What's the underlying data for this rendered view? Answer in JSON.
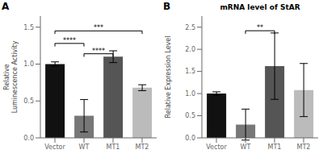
{
  "chart_data": [
    {
      "type": "bar",
      "panel_label": "A",
      "ylabel": "Relative\nLuminescence Activity",
      "categories": [
        "Vector",
        "WT",
        "MT1",
        "MT2"
      ],
      "values": [
        1.0,
        0.3,
        1.1,
        0.68
      ],
      "errors": [
        0.03,
        0.22,
        0.08,
        0.04
      ],
      "colors": [
        "#111111",
        "#777777",
        "#555555",
        "#bbbbbb"
      ],
      "ylim": [
        0,
        1.65
      ],
      "yticks": [
        {
          "value": 0,
          "label": "0.0"
        },
        0.5,
        {
          "value": 1,
          "label": "1.0"
        },
        1.5
      ],
      "grid": false,
      "annotations": [
        {
          "x1": "Vector",
          "x2": "WT",
          "y": 1.28,
          "text": "****"
        },
        {
          "x1": "WT",
          "x2": "MT1",
          "y": 1.14,
          "text": "****"
        },
        {
          "x1": "Vector",
          "x2": "MT2",
          "y": 1.45,
          "text": "***"
        }
      ]
    },
    {
      "type": "bar",
      "panel_label": "B",
      "title": "mRNA level of StAR",
      "ylabel": "Relative Expression Level",
      "categories": [
        "Vector",
        "WT",
        "MT1",
        "MT2"
      ],
      "values": [
        1.0,
        0.3,
        1.62,
        1.08
      ],
      "errors": [
        0.04,
        0.35,
        0.75,
        0.6
      ],
      "colors": [
        "#111111",
        "#777777",
        "#555555",
        "#bbbbbb"
      ],
      "ylim": [
        0,
        2.75
      ],
      "yticks": [
        {
          "value": 0,
          "label": "0.0"
        },
        0.5,
        {
          "value": 1,
          "label": "1.0"
        },
        1.5,
        {
          "value": 2,
          "label": "2.0"
        },
        2.5
      ],
      "grid": false,
      "annotations": [
        {
          "x1": "WT",
          "x2": "MT1",
          "y": 2.42,
          "text": "**"
        }
      ]
    }
  ]
}
